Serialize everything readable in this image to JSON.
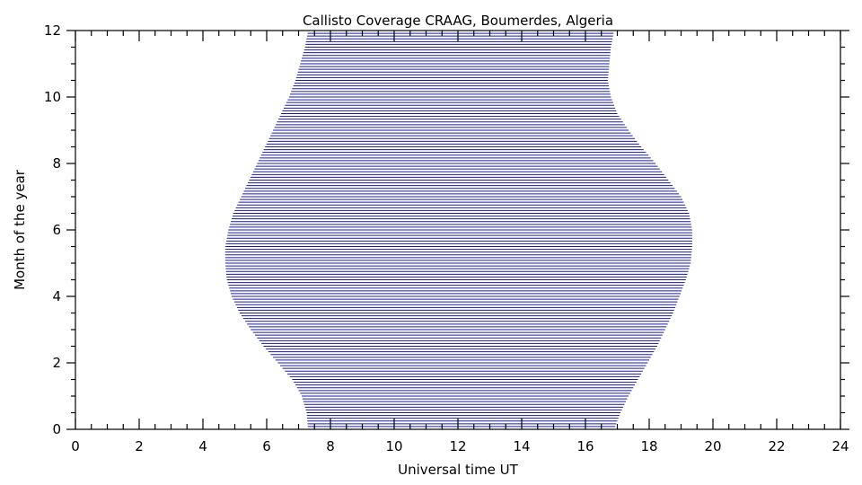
{
  "chart_data": {
    "type": "area",
    "title": "Callisto Coverage CRAAG, Boumerdes, Algeria",
    "xlabel": "Universal time UT",
    "ylabel": "Month of the year",
    "xlim": [
      0,
      24
    ],
    "ylim": [
      0,
      12
    ],
    "x_ticks": [
      "0",
      "2",
      "4",
      "6",
      "8",
      "10",
      "12",
      "14",
      "16",
      "18",
      "20",
      "22",
      "24"
    ],
    "y_ticks": [
      "0",
      "2",
      "4",
      "6",
      "8",
      "10",
      "12"
    ],
    "grid": false,
    "fill_style": "horizontal-hatch",
    "color": "#1a1aa0",
    "series": [
      {
        "month": [
          0,
          0.5,
          1,
          1.5,
          2,
          2.5,
          3,
          3.5,
          4,
          4.5,
          5,
          5.5,
          6,
          6.5,
          7,
          7.5,
          8,
          8.5,
          9,
          9.5,
          10,
          10.5,
          11,
          11.5,
          12
        ],
        "start_ut": [
          7.3,
          7.25,
          7.1,
          6.8,
          6.35,
          5.9,
          5.5,
          5.15,
          4.9,
          4.75,
          4.7,
          4.7,
          4.8,
          4.95,
          5.2,
          5.45,
          5.7,
          5.95,
          6.2,
          6.45,
          6.7,
          6.9,
          7.05,
          7.2,
          7.3
        ],
        "end_ut": [
          16.9,
          17.1,
          17.35,
          17.65,
          17.95,
          18.25,
          18.5,
          18.75,
          18.95,
          19.15,
          19.3,
          19.35,
          19.35,
          19.25,
          19.0,
          18.6,
          18.2,
          17.75,
          17.35,
          17.0,
          16.8,
          16.7,
          16.75,
          16.8,
          16.9
        ]
      }
    ]
  }
}
